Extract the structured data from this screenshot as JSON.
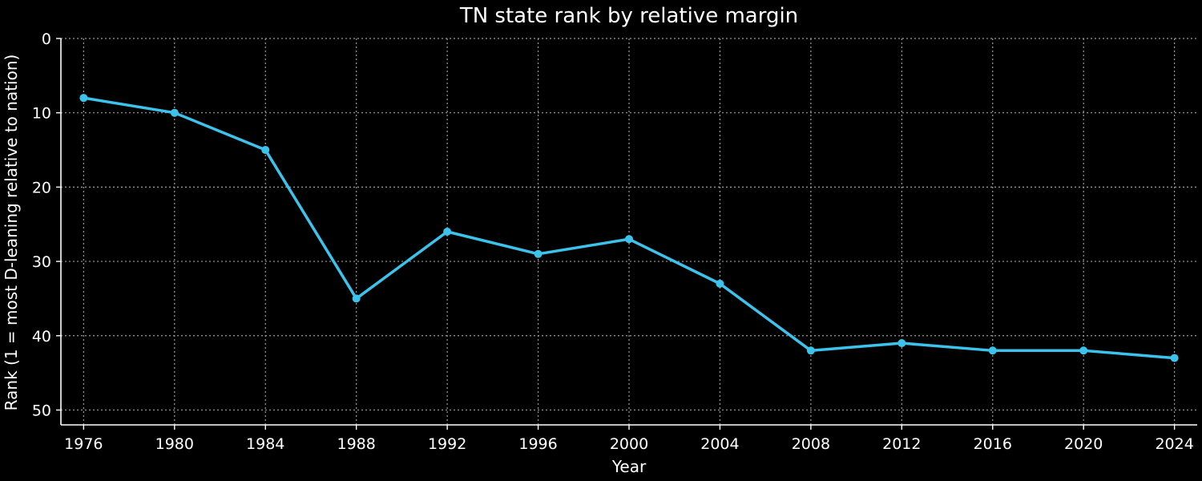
{
  "chart_data": {
    "type": "line",
    "title": "TN state rank by relative margin",
    "xlabel": "Year",
    "ylabel": "Rank (1 = most D-leaning relative to nation)",
    "x": [
      1976,
      1980,
      1984,
      1988,
      1992,
      1996,
      2000,
      2004,
      2008,
      2012,
      2016,
      2020,
      2024
    ],
    "series": [
      {
        "values": [
          8,
          10,
          15,
          35,
          26,
          29,
          27,
          33,
          42,
          41,
          42,
          42,
          43
        ]
      }
    ],
    "xticks": [
      1976,
      1980,
      1984,
      1988,
      1992,
      1996,
      2000,
      2004,
      2008,
      2012,
      2016,
      2020,
      2024
    ],
    "yticks": [
      0,
      10,
      20,
      30,
      40,
      50
    ],
    "xlim": [
      1975,
      2025
    ],
    "ylim": [
      52,
      0
    ],
    "y_inverted": true,
    "grid": true,
    "line_color": "#3cc3ec",
    "background": "#000000"
  }
}
